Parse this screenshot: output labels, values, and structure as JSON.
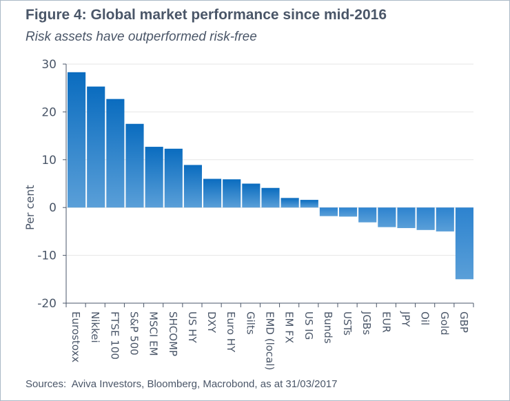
{
  "header": {
    "title": "Figure 4: Global market performance since mid-2016",
    "subtitle": "Risk assets have outperformed risk-free"
  },
  "footer": {
    "source": "Sources:  Aviva Investors, Bloomberg, Macrobond, as at 31/03/2017"
  },
  "colors": {
    "bar_positive_top": "#0a6cbf",
    "bar_positive_bottom": "#5a9fd8",
    "bar_negative_top": "#2d83cf",
    "bar_negative_bottom": "#5a9fd8",
    "text": "#4a5668",
    "grid": "#e6e6e6"
  },
  "chart_data": {
    "type": "bar",
    "title": "Figure 4: Global market performance since mid-2016",
    "subtitle": "Risk assets have outperformed risk-free",
    "xlabel": "",
    "ylabel": "Per cent",
    "ylim": [
      -20,
      30
    ],
    "yticks": [
      30,
      20,
      10,
      0,
      -10,
      -20
    ],
    "ytick_labels": [
      "30",
      "20",
      "10",
      "0",
      "-10",
      "-20"
    ],
    "grid": true,
    "categories": [
      "Eurostoxx",
      "Nikkei",
      "FTSE 100",
      "S&P 500",
      "MSCI EM",
      "SHCOMP",
      "US HY",
      "DXY",
      "Euro HY",
      "Gilts",
      "EMD (local)",
      "EM FX",
      "US IG",
      "Bunds",
      "USTs",
      "JGBs",
      "EUR",
      "JPY",
      "Oil",
      "Gold",
      "GBP"
    ],
    "values": [
      28.3,
      25.3,
      22.7,
      17.5,
      12.7,
      12.3,
      8.9,
      6.0,
      5.9,
      5.0,
      4.1,
      2.0,
      1.6,
      -1.8,
      -1.9,
      -3.1,
      -4.1,
      -4.3,
      -4.7,
      -5.0,
      -15.0
    ]
  }
}
